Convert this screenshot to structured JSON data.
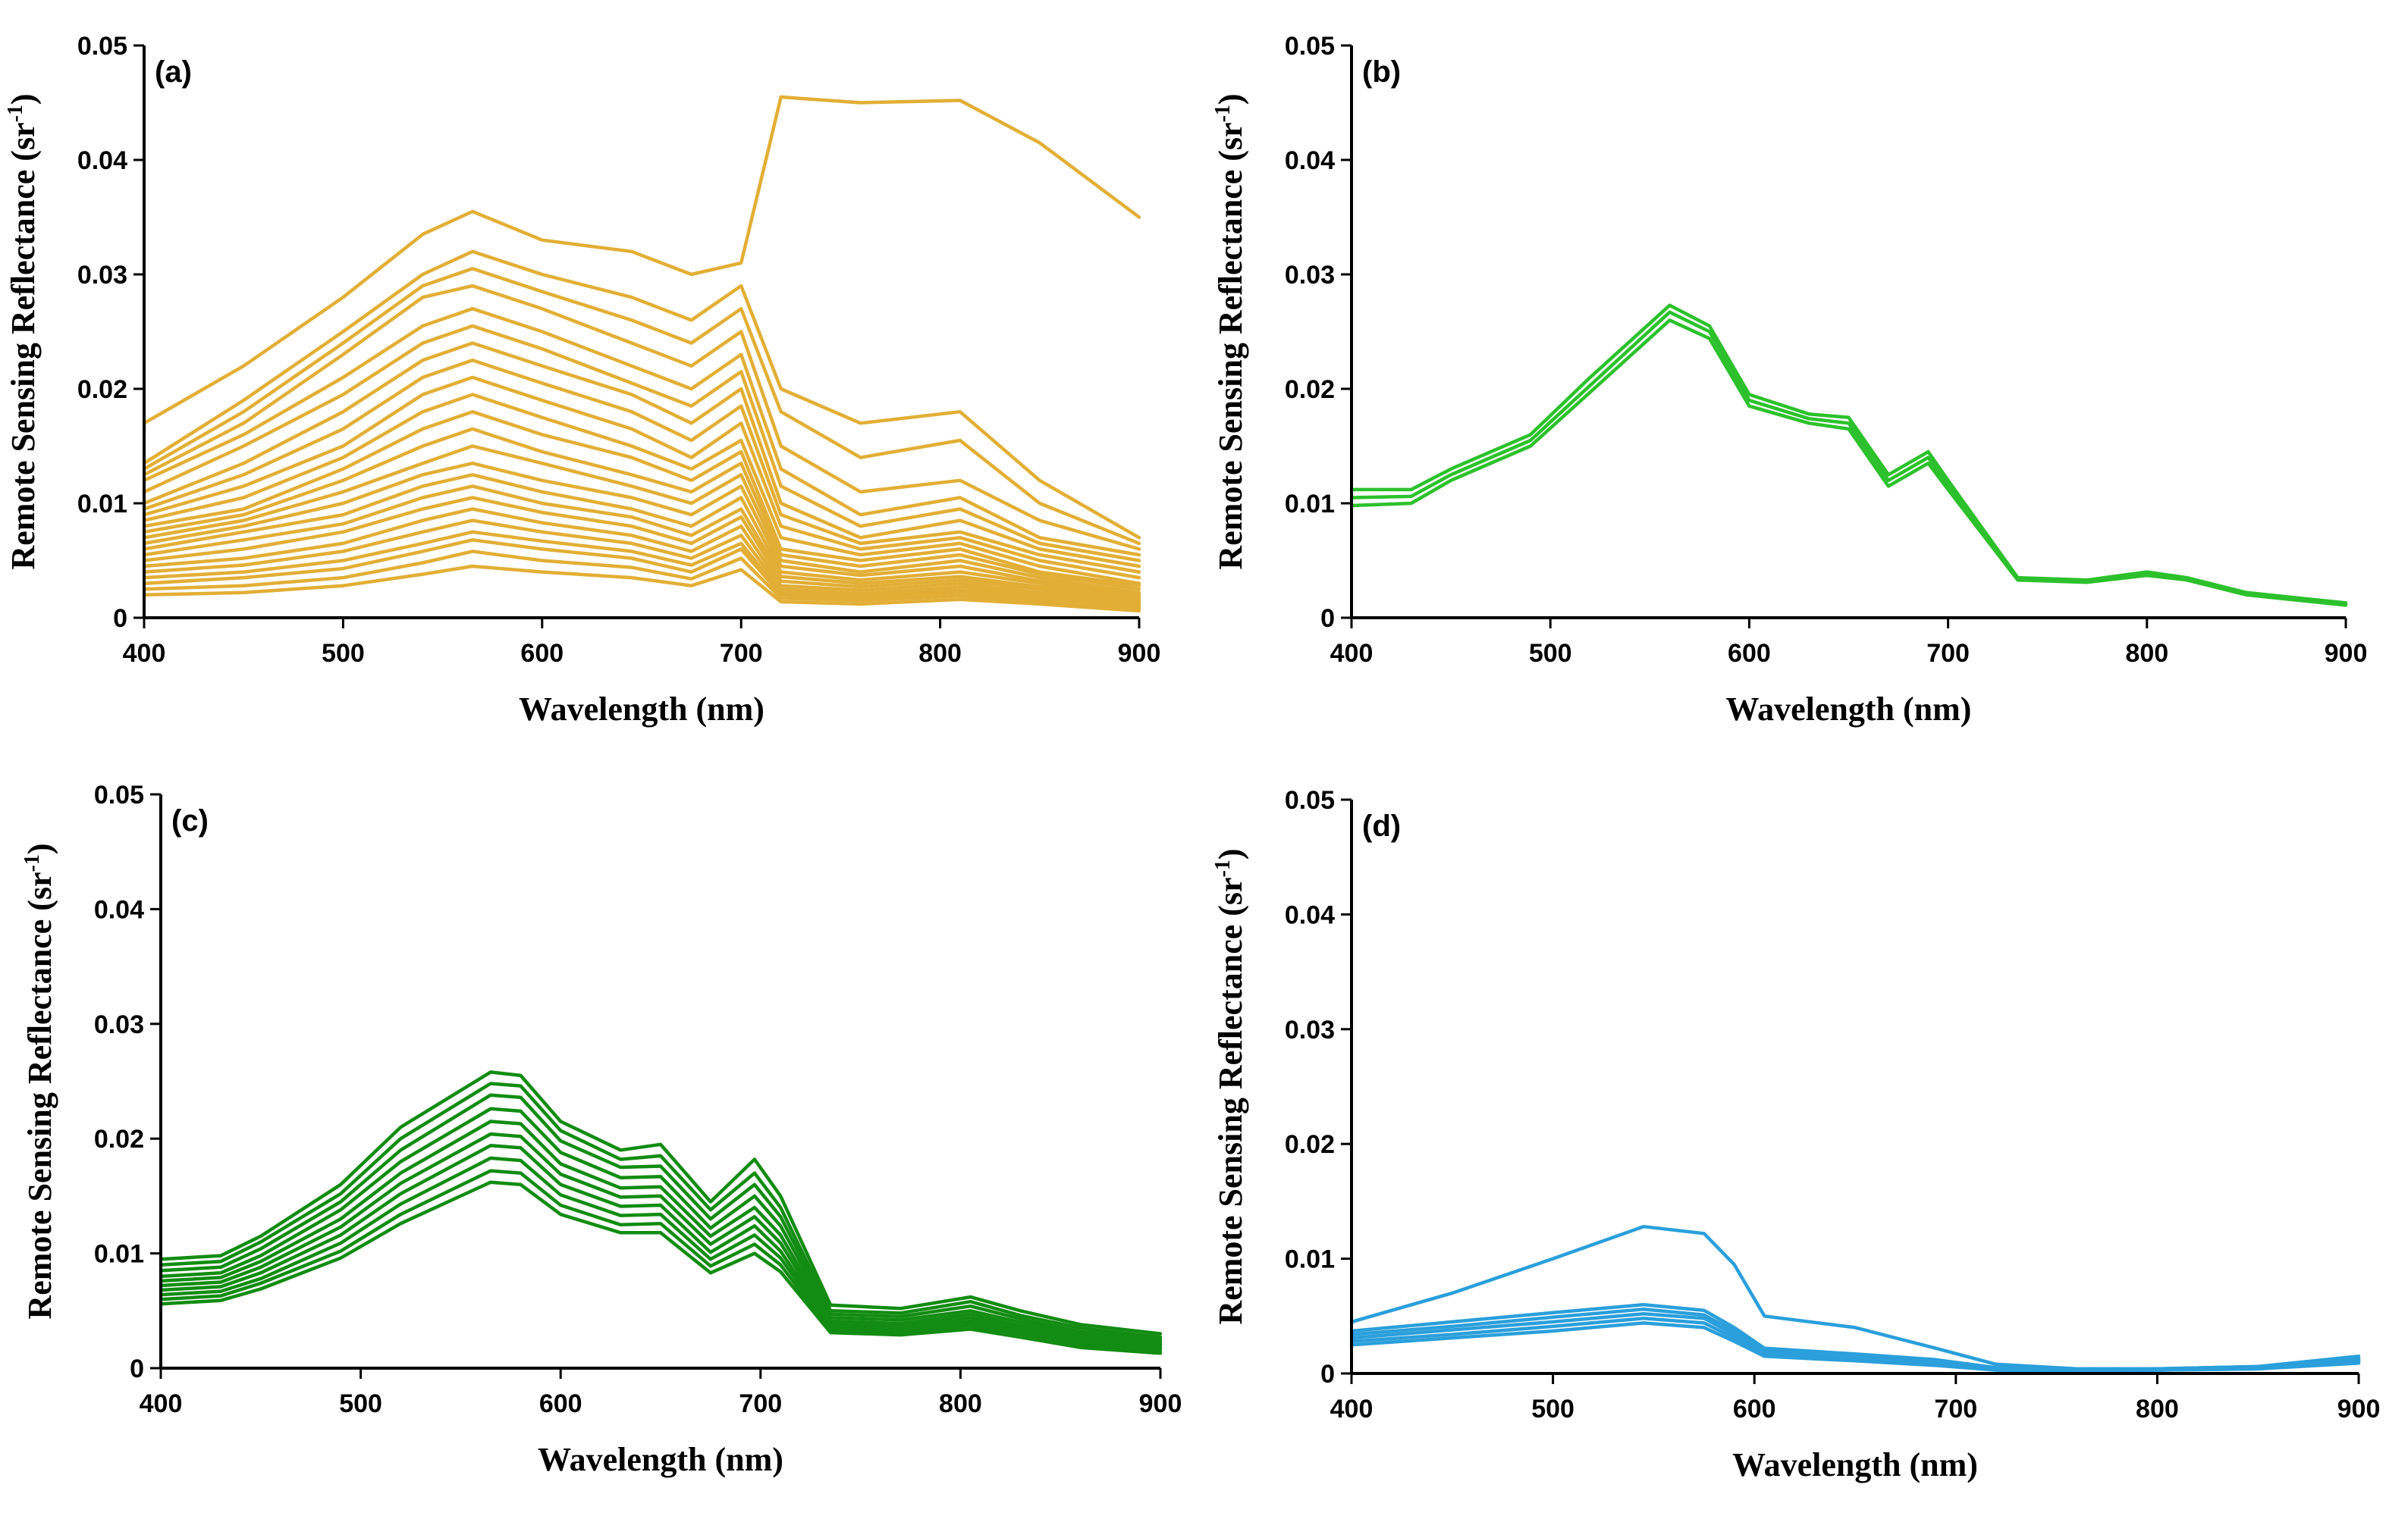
{
  "chart_data": [
    {
      "type": "line",
      "panel_label": "(a)",
      "xlabel": "Wavelength (nm)",
      "ylabel": "Remote Sensing Reflectance (sr",
      "ylabel_sup": "-1",
      "ylabel_close": ")",
      "xlim": [
        400,
        900
      ],
      "ylim": [
        0,
        0.05
      ],
      "xticks": [
        "400",
        "500",
        "600",
        "700",
        "800",
        "900"
      ],
      "yticks": [
        "0",
        "0.01",
        "0.02",
        "0.03",
        "0.04",
        "0.05"
      ],
      "color": "#E2AE35",
      "x": [
        400,
        450,
        500,
        540,
        565,
        600,
        645,
        675,
        700,
        720,
        760,
        810,
        850,
        900
      ],
      "series": [
        {
          "name": "a-1",
          "values": [
            0.017,
            0.022,
            0.028,
            0.0335,
            0.0355,
            0.033,
            0.032,
            0.03,
            0.031,
            0.0455,
            0.045,
            0.0452,
            0.0415,
            0.035
          ]
        },
        {
          "name": "a-2",
          "values": [
            0.0135,
            0.019,
            0.025,
            0.03,
            0.032,
            0.03,
            0.028,
            0.026,
            0.029,
            0.02,
            0.017,
            0.018,
            0.012,
            0.007
          ]
        },
        {
          "name": "a-3",
          "values": [
            0.013,
            0.018,
            0.024,
            0.029,
            0.0305,
            0.0285,
            0.026,
            0.024,
            0.027,
            0.018,
            0.014,
            0.0155,
            0.01,
            0.0065
          ]
        },
        {
          "name": "a-4",
          "values": [
            0.0125,
            0.017,
            0.023,
            0.028,
            0.029,
            0.027,
            0.024,
            0.022,
            0.025,
            0.015,
            0.011,
            0.012,
            0.0085,
            0.006
          ]
        },
        {
          "name": "a-5",
          "values": [
            0.012,
            0.016,
            0.021,
            0.0255,
            0.027,
            0.025,
            0.022,
            0.02,
            0.023,
            0.013,
            0.009,
            0.0105,
            0.007,
            0.0055
          ]
        },
        {
          "name": "a-6",
          "values": [
            0.011,
            0.015,
            0.0195,
            0.024,
            0.0255,
            0.0235,
            0.0205,
            0.0185,
            0.0215,
            0.0115,
            0.008,
            0.0095,
            0.0065,
            0.005
          ]
        },
        {
          "name": "a-7",
          "values": [
            0.01,
            0.0135,
            0.018,
            0.0225,
            0.024,
            0.022,
            0.0195,
            0.017,
            0.02,
            0.01,
            0.007,
            0.0085,
            0.006,
            0.0045
          ]
        },
        {
          "name": "a-8",
          "values": [
            0.0095,
            0.0125,
            0.0165,
            0.021,
            0.0225,
            0.0205,
            0.018,
            0.0155,
            0.0185,
            0.009,
            0.0065,
            0.0075,
            0.0055,
            0.004
          ]
        },
        {
          "name": "a-9",
          "values": [
            0.009,
            0.0115,
            0.015,
            0.0195,
            0.021,
            0.019,
            0.0165,
            0.014,
            0.017,
            0.008,
            0.006,
            0.007,
            0.005,
            0.0035
          ]
        },
        {
          "name": "a-10",
          "values": [
            0.0085,
            0.0105,
            0.014,
            0.018,
            0.0195,
            0.0175,
            0.015,
            0.013,
            0.0155,
            0.007,
            0.0055,
            0.0065,
            0.0045,
            0.003
          ]
        },
        {
          "name": "a-11",
          "values": [
            0.008,
            0.0095,
            0.013,
            0.0165,
            0.018,
            0.016,
            0.014,
            0.012,
            0.0145,
            0.006,
            0.005,
            0.006,
            0.004,
            0.0028
          ]
        },
        {
          "name": "a-12",
          "values": [
            0.0075,
            0.009,
            0.012,
            0.015,
            0.0165,
            0.0145,
            0.0125,
            0.011,
            0.0135,
            0.0055,
            0.0045,
            0.0055,
            0.0038,
            0.0025
          ]
        },
        {
          "name": "a-13",
          "values": [
            0.007,
            0.0085,
            0.011,
            0.0135,
            0.015,
            0.0135,
            0.0115,
            0.01,
            0.0125,
            0.005,
            0.004,
            0.005,
            0.0035,
            0.0022
          ]
        },
        {
          "name": "a-14",
          "values": [
            0.0065,
            0.008,
            0.01,
            0.0125,
            0.0135,
            0.012,
            0.0105,
            0.009,
            0.0115,
            0.0045,
            0.0037,
            0.0045,
            0.0032,
            0.002
          ]
        },
        {
          "name": "a-15",
          "values": [
            0.006,
            0.0075,
            0.009,
            0.0115,
            0.0125,
            0.011,
            0.0095,
            0.008,
            0.0105,
            0.004,
            0.0033,
            0.004,
            0.003,
            0.0018
          ]
        },
        {
          "name": "a-16",
          "values": [
            0.0055,
            0.0068,
            0.0082,
            0.0105,
            0.0115,
            0.01,
            0.0088,
            0.0072,
            0.0095,
            0.0036,
            0.003,
            0.0036,
            0.0027,
            0.0016
          ]
        },
        {
          "name": "a-17",
          "values": [
            0.005,
            0.006,
            0.0075,
            0.0095,
            0.0105,
            0.0092,
            0.008,
            0.0065,
            0.0088,
            0.0032,
            0.0027,
            0.0033,
            0.0025,
            0.0015
          ]
        },
        {
          "name": "a-18",
          "values": [
            0.0045,
            0.0052,
            0.0065,
            0.0085,
            0.0095,
            0.0083,
            0.0072,
            0.0058,
            0.008,
            0.0028,
            0.0024,
            0.003,
            0.0022,
            0.0013
          ]
        },
        {
          "name": "a-19",
          "values": [
            0.004,
            0.0046,
            0.0058,
            0.0075,
            0.0085,
            0.0075,
            0.0065,
            0.0052,
            0.0072,
            0.0025,
            0.0021,
            0.0027,
            0.002,
            0.0012
          ]
        },
        {
          "name": "a-20",
          "values": [
            0.0035,
            0.004,
            0.005,
            0.0065,
            0.0075,
            0.0067,
            0.0058,
            0.0046,
            0.0065,
            0.0022,
            0.0019,
            0.0024,
            0.0018,
            0.0011
          ]
        },
        {
          "name": "a-21",
          "values": [
            0.003,
            0.0035,
            0.0043,
            0.0058,
            0.0068,
            0.006,
            0.0052,
            0.004,
            0.006,
            0.002,
            0.0017,
            0.0022,
            0.0016,
            0.001
          ]
        },
        {
          "name": "a-22",
          "values": [
            0.0025,
            0.0028,
            0.0035,
            0.0048,
            0.0058,
            0.005,
            0.0044,
            0.0034,
            0.0052,
            0.0017,
            0.0015,
            0.0019,
            0.0014,
            0.0008
          ]
        },
        {
          "name": "a-23",
          "values": [
            0.002,
            0.0022,
            0.0028,
            0.0038,
            0.0045,
            0.004,
            0.0035,
            0.0028,
            0.0042,
            0.0014,
            0.0012,
            0.0016,
            0.0012,
            0.0006
          ]
        }
      ]
    },
    {
      "type": "line",
      "panel_label": "(b)",
      "xlabel": "Wavelength (nm)",
      "ylabel": "Remote Sensing Reflectance (sr",
      "ylabel_sup": "-1",
      "ylabel_close": ")",
      "xlim": [
        400,
        900
      ],
      "ylim": [
        0,
        0.05
      ],
      "xticks": [
        "400",
        "500",
        "600",
        "700",
        "800",
        "900"
      ],
      "yticks": [
        "0",
        "0.01",
        "0.02",
        "0.03",
        "0.04",
        "0.05"
      ],
      "color": "#2CC12C",
      "x": [
        400,
        430,
        450,
        490,
        520,
        560,
        580,
        600,
        630,
        650,
        670,
        690,
        700,
        735,
        770,
        800,
        820,
        850,
        900
      ],
      "series": [
        {
          "name": "b-1",
          "values": [
            0.0112,
            0.0112,
            0.013,
            0.016,
            0.021,
            0.0273,
            0.0255,
            0.0195,
            0.0178,
            0.0175,
            0.0125,
            0.0145,
            0.012,
            0.0035,
            0.0033,
            0.004,
            0.0035,
            0.0022,
            0.0013
          ]
        },
        {
          "name": "b-2",
          "values": [
            0.0105,
            0.0106,
            0.0125,
            0.0155,
            0.0203,
            0.0267,
            0.025,
            0.019,
            0.0174,
            0.017,
            0.012,
            0.014,
            0.0116,
            0.0034,
            0.0032,
            0.0038,
            0.0034,
            0.0021,
            0.0012
          ]
        },
        {
          "name": "b-3",
          "values": [
            0.0098,
            0.01,
            0.012,
            0.015,
            0.0197,
            0.026,
            0.0244,
            0.0185,
            0.017,
            0.0165,
            0.0115,
            0.0135,
            0.0112,
            0.0033,
            0.0031,
            0.0037,
            0.0033,
            0.002,
            0.0011
          ]
        }
      ]
    },
    {
      "type": "line",
      "panel_label": "(c)",
      "xlabel": "Wavelength (nm)",
      "ylabel": "Remote Sensing Reflectance (sr",
      "ylabel_sup": "-1",
      "ylabel_close": ")",
      "xlim": [
        400,
        900
      ],
      "ylim": [
        0,
        0.05
      ],
      "xticks": [
        "400",
        "500",
        "600",
        "700",
        "800",
        "900"
      ],
      "yticks": [
        "0",
        "0.01",
        "0.02",
        "0.03",
        "0.04",
        "0.05"
      ],
      "color": "#128C12",
      "x": [
        400,
        430,
        450,
        490,
        520,
        565,
        580,
        600,
        630,
        650,
        675,
        697,
        710,
        735,
        770,
        805,
        830,
        860,
        900
      ],
      "series": [
        {
          "name": "c-1",
          "values": [
            0.0095,
            0.0098,
            0.0115,
            0.016,
            0.021,
            0.0258,
            0.0255,
            0.0215,
            0.019,
            0.0195,
            0.0145,
            0.0182,
            0.015,
            0.0055,
            0.0052,
            0.0062,
            0.005,
            0.0038,
            0.003
          ]
        },
        {
          "name": "c-2",
          "values": [
            0.009,
            0.0093,
            0.011,
            0.0152,
            0.02,
            0.0248,
            0.0246,
            0.0207,
            0.0182,
            0.0185,
            0.0138,
            0.017,
            0.014,
            0.005,
            0.0048,
            0.0058,
            0.0046,
            0.0035,
            0.0027
          ]
        },
        {
          "name": "c-3",
          "values": [
            0.0085,
            0.0088,
            0.0104,
            0.0145,
            0.019,
            0.0238,
            0.0236,
            0.0198,
            0.0175,
            0.0176,
            0.013,
            0.016,
            0.0132,
            0.0047,
            0.0045,
            0.0054,
            0.0043,
            0.0032,
            0.0025
          ]
        },
        {
          "name": "c-4",
          "values": [
            0.008,
            0.0083,
            0.0098,
            0.0138,
            0.018,
            0.0226,
            0.0224,
            0.0188,
            0.0166,
            0.0167,
            0.0122,
            0.015,
            0.0124,
            0.0044,
            0.0042,
            0.005,
            0.004,
            0.003,
            0.0023
          ]
        },
        {
          "name": "c-5",
          "values": [
            0.0076,
            0.0079,
            0.0093,
            0.013,
            0.017,
            0.0215,
            0.0213,
            0.0178,
            0.0157,
            0.0158,
            0.0115,
            0.014,
            0.0116,
            0.0041,
            0.0039,
            0.0047,
            0.0037,
            0.0028,
            0.0021
          ]
        },
        {
          "name": "c-6",
          "values": [
            0.0072,
            0.0075,
            0.0088,
            0.0123,
            0.0161,
            0.0204,
            0.0202,
            0.0169,
            0.0149,
            0.015,
            0.0108,
            0.0132,
            0.0109,
            0.0039,
            0.0037,
            0.0044,
            0.0035,
            0.0026,
            0.002
          ]
        },
        {
          "name": "c-7",
          "values": [
            0.0068,
            0.0071,
            0.0083,
            0.0116,
            0.0152,
            0.0194,
            0.0192,
            0.016,
            0.0141,
            0.0142,
            0.0101,
            0.0124,
            0.0102,
            0.0037,
            0.0035,
            0.0041,
            0.0033,
            0.0024,
            0.0018
          ]
        },
        {
          "name": "c-8",
          "values": [
            0.0064,
            0.0067,
            0.0078,
            0.0109,
            0.0143,
            0.0183,
            0.0181,
            0.0151,
            0.0133,
            0.0134,
            0.0095,
            0.0116,
            0.0096,
            0.0035,
            0.0033,
            0.0039,
            0.0031,
            0.0022,
            0.0017
          ]
        },
        {
          "name": "c-9",
          "values": [
            0.006,
            0.0063,
            0.0074,
            0.0102,
            0.0134,
            0.0172,
            0.017,
            0.0142,
            0.0125,
            0.0126,
            0.0089,
            0.0108,
            0.009,
            0.0033,
            0.0031,
            0.0037,
            0.0029,
            0.002,
            0.0015
          ]
        },
        {
          "name": "c-10",
          "values": [
            0.0056,
            0.0059,
            0.0069,
            0.0096,
            0.0126,
            0.0162,
            0.016,
            0.0134,
            0.0118,
            0.0118,
            0.0083,
            0.01,
            0.0084,
            0.0031,
            0.0029,
            0.0034,
            0.0027,
            0.0018,
            0.0013
          ]
        }
      ]
    },
    {
      "type": "line",
      "panel_label": "(d)",
      "xlabel": "Wavelength (nm)",
      "ylabel": "Remote Sensing Reflectance (sr",
      "ylabel_sup": "-1",
      "ylabel_close": ")",
      "xlim": [
        400,
        900
      ],
      "ylim": [
        0,
        0.05
      ],
      "xticks": [
        "400",
        "500",
        "600",
        "700",
        "800",
        "900"
      ],
      "yticks": [
        "0",
        "0.01",
        "0.02",
        "0.03",
        "0.04",
        "0.05"
      ],
      "color": "#2A9FDB",
      "x": [
        400,
        450,
        500,
        545,
        575,
        590,
        605,
        650,
        690,
        720,
        760,
        800,
        850,
        900
      ],
      "series": [
        {
          "name": "d-1",
          "values": [
            0.0045,
            0.007,
            0.01,
            0.0128,
            0.0122,
            0.0095,
            0.005,
            0.004,
            0.0022,
            0.0008,
            0.0004,
            0.0004,
            0.0006,
            0.0012
          ]
        },
        {
          "name": "d-2",
          "values": [
            0.0037,
            0.0045,
            0.0053,
            0.006,
            0.0055,
            0.004,
            0.0022,
            0.0017,
            0.0012,
            0.0005,
            0.0003,
            0.0004,
            0.0006,
            0.0015
          ]
        },
        {
          "name": "d-3",
          "values": [
            0.0034,
            0.0041,
            0.0049,
            0.0056,
            0.0051,
            0.0037,
            0.002,
            0.0015,
            0.001,
            0.0004,
            0.0003,
            0.0004,
            0.0005,
            0.0013
          ]
        },
        {
          "name": "d-4",
          "values": [
            0.0031,
            0.0038,
            0.0045,
            0.0052,
            0.0048,
            0.0034,
            0.0018,
            0.0014,
            0.0009,
            0.0004,
            0.0002,
            0.0003,
            0.0005,
            0.0011
          ]
        },
        {
          "name": "d-5",
          "values": [
            0.0028,
            0.0034,
            0.0041,
            0.0048,
            0.0044,
            0.0031,
            0.0016,
            0.0012,
            0.0008,
            0.0003,
            0.0002,
            0.0003,
            0.0004,
            0.001
          ]
        },
        {
          "name": "d-6",
          "values": [
            0.0025,
            0.0031,
            0.0037,
            0.0044,
            0.004,
            0.0028,
            0.0015,
            0.0011,
            0.0007,
            0.0003,
            0.0002,
            0.0003,
            0.0004,
            0.0009
          ]
        }
      ]
    }
  ]
}
